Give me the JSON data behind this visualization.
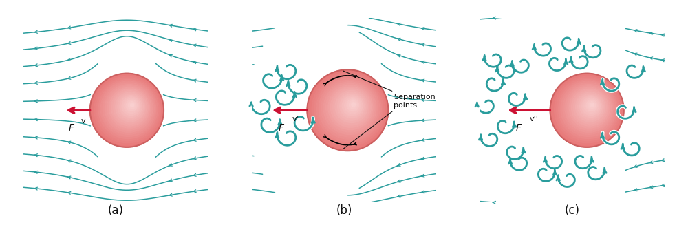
{
  "bg_color": "#cce8f0",
  "sphere_grad_outer": "#e87878",
  "sphere_grad_mid": "#f0a0a0",
  "sphere_grad_inner": "#fad4d4",
  "sphere_border": "#cc6060",
  "flow_color": "#2a9d9d",
  "turb_teal": "#2a9d9d",
  "turb_white": "#ffffff",
  "arrow_color": "#cc1133",
  "label_color": "#111111",
  "panel_labels": [
    "(a)",
    "(b)",
    "(c)"
  ],
  "force_label_a": "F",
  "force_label_b": "F",
  "force_label_c": "F",
  "sep_label": "Separation\npoints",
  "fig_width": 10.0,
  "fig_height": 3.27,
  "box_border": "#aaccdd"
}
